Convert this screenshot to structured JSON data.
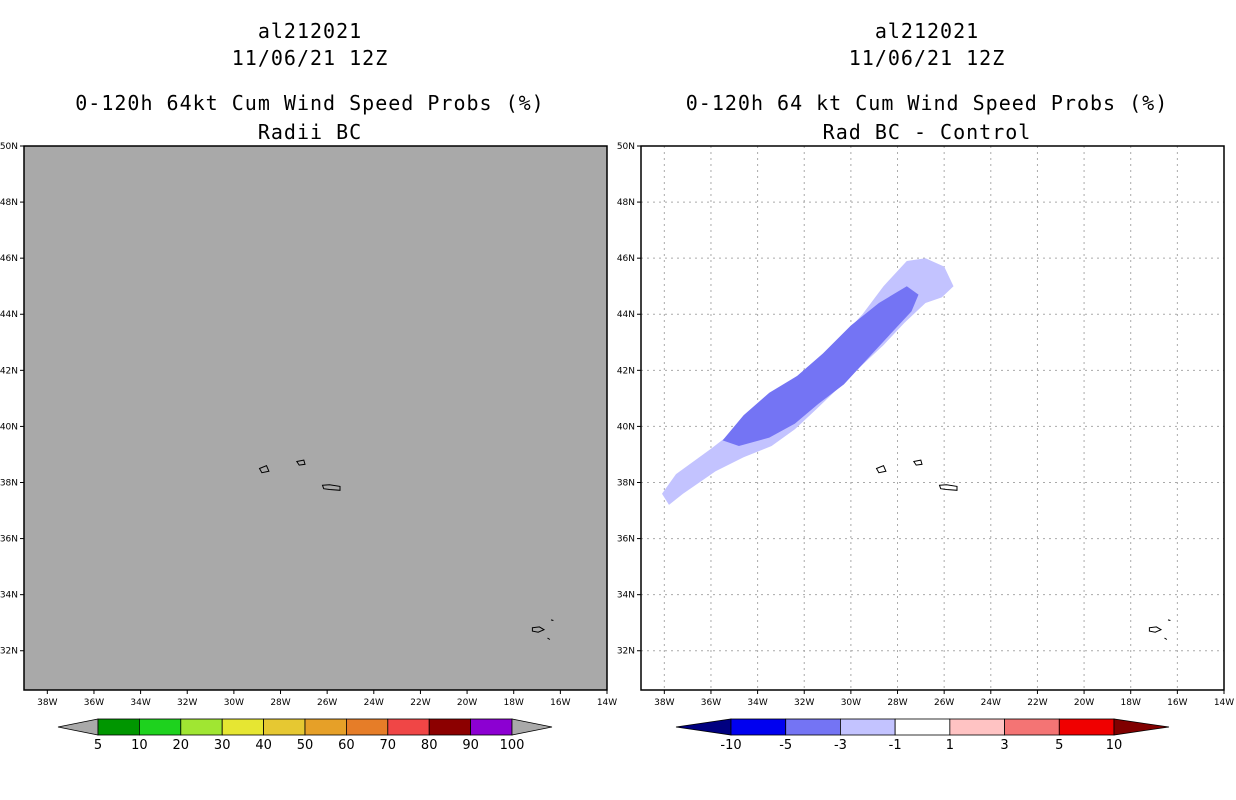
{
  "colors": {
    "land_gray": "#a9a9a9",
    "diff_light_blue": "#c3c3ff",
    "diff_mid_blue": "#7474f4",
    "coast": "#000000",
    "grid": "#aaaaaa"
  },
  "chart_data": [
    {
      "type": "heatmap",
      "storm_id": "al212021",
      "date_line": "11/06/21 12Z",
      "title": "0-120h 64kt Cum Wind Speed Probs (%)",
      "subtitle": "Radii BC",
      "xlim": [
        -39,
        -14
      ],
      "ylim": [
        30.6,
        50
      ],
      "x_ticks": [
        -38,
        -36,
        -34,
        -32,
        -30,
        -28,
        -26,
        -24,
        -22,
        -20,
        -18,
        -16,
        -14
      ],
      "x_tick_labels": [
        "38W",
        "36W",
        "34W",
        "32W",
        "30W",
        "28W",
        "26W",
        "24W",
        "22W",
        "20W",
        "18W",
        "16W",
        "14W"
      ],
      "y_ticks": [
        32,
        34,
        36,
        38,
        40,
        42,
        44,
        46,
        48,
        50
      ],
      "y_tick_labels": [
        "32N",
        "34N",
        "36N",
        "38N",
        "40N",
        "42N",
        "44N",
        "46N",
        "48N",
        "50N"
      ],
      "field": "no probabilities >= 5% (entire domain below lowest contour)",
      "colorbar": {
        "labels": [
          "5",
          "10",
          "20",
          "30",
          "40",
          "50",
          "60",
          "70",
          "80",
          "90",
          "100"
        ],
        "colors": [
          "#a9a9a9",
          "#009600",
          "#1ed21e",
          "#a0e632",
          "#e6e632",
          "#e6c832",
          "#e6a028",
          "#e67d28",
          "#f04646",
          "#8c0000",
          "#8c00d2",
          "#a9a9a9"
        ]
      }
    },
    {
      "type": "heatmap",
      "storm_id": "al212021",
      "date_line": "11/06/21 12Z",
      "title": "0-120h 64 kt Cum Wind Speed Probs (%)",
      "subtitle": "Rad BC - Control",
      "xlim": [
        -39,
        -14
      ],
      "ylim": [
        30.6,
        50
      ],
      "x_ticks": [
        -38,
        -36,
        -34,
        -32,
        -30,
        -28,
        -26,
        -24,
        -22,
        -20,
        -18,
        -16,
        -14
      ],
      "x_tick_labels": [
        "38W",
        "36W",
        "34W",
        "32W",
        "30W",
        "28W",
        "26W",
        "24W",
        "22W",
        "20W",
        "18W",
        "16W",
        "14W"
      ],
      "y_ticks": [
        32,
        34,
        36,
        38,
        40,
        42,
        44,
        46,
        48,
        50
      ],
      "y_tick_labels": [
        "32N",
        "34N",
        "36N",
        "38N",
        "40N",
        "42N",
        "44N",
        "46N",
        "48N",
        "50N"
      ],
      "grid": true,
      "regions": [
        {
          "range": "-3 to -1",
          "color": "#c3c3ff",
          "lonlat": [
            [
              -38.1,
              37.6
            ],
            [
              -37.5,
              38.3
            ],
            [
              -36,
              39.2
            ],
            [
              -34.6,
              40.1
            ],
            [
              -33.2,
              41.2
            ],
            [
              -31.8,
              42.1
            ],
            [
              -30.6,
              43.0
            ],
            [
              -29.5,
              44.0
            ],
            [
              -28.6,
              45.0
            ],
            [
              -27.6,
              45.9
            ],
            [
              -26.8,
              46.0
            ],
            [
              -26.0,
              45.7
            ],
            [
              -25.6,
              45.0
            ],
            [
              -26.1,
              44.6
            ],
            [
              -26.8,
              44.4
            ],
            [
              -27.7,
              43.7
            ],
            [
              -28.6,
              42.9
            ],
            [
              -29.5,
              42.2
            ],
            [
              -30.5,
              41.4
            ],
            [
              -31.5,
              40.6
            ],
            [
              -32.4,
              39.9
            ],
            [
              -33.4,
              39.3
            ],
            [
              -34.6,
              38.9
            ],
            [
              -35.8,
              38.4
            ],
            [
              -37.2,
              37.6
            ],
            [
              -37.8,
              37.2
            ]
          ]
        },
        {
          "range": "-5 to -3",
          "color": "#7474f4",
          "lonlat": [
            [
              -35.5,
              39.5
            ],
            [
              -34.6,
              40.4
            ],
            [
              -33.5,
              41.2
            ],
            [
              -32.3,
              41.8
            ],
            [
              -31.2,
              42.6
            ],
            [
              -30.0,
              43.6
            ],
            [
              -28.8,
              44.4
            ],
            [
              -27.6,
              45.0
            ],
            [
              -27.1,
              44.7
            ],
            [
              -27.4,
              44.1
            ],
            [
              -28.3,
              43.3
            ],
            [
              -29.3,
              42.4
            ],
            [
              -30.3,
              41.5
            ],
            [
              -31.4,
              40.8
            ],
            [
              -32.4,
              40.1
            ],
            [
              -33.5,
              39.6
            ],
            [
              -34.8,
              39.3
            ]
          ]
        }
      ],
      "colorbar": {
        "labels": [
          "-10",
          "-5",
          "-3",
          "-1",
          "1",
          "3",
          "5",
          "10"
        ],
        "colors": [
          "#000080",
          "#0000f0",
          "#7474f4",
          "#c3c3ff",
          "#ffffff",
          "#ffc3c3",
          "#f47474",
          "#f00000",
          "#800000"
        ]
      }
    }
  ]
}
